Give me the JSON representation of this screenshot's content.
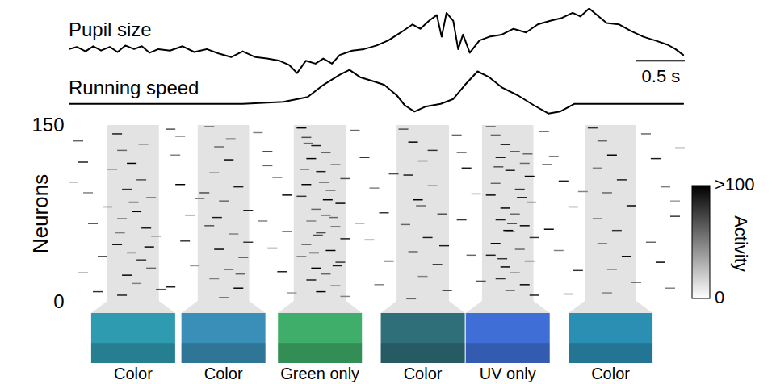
{
  "chart_data": {
    "type": "raster",
    "traces": [
      {
        "name": "Pupil size",
        "color": "#000000",
        "ylim": [
          0,
          1
        ],
        "x": [
          0,
          0.08,
          0.17,
          0.25,
          0.33,
          0.42,
          0.5,
          0.58,
          0.67,
          0.75,
          0.83,
          0.92,
          1.04,
          1.17,
          1.29,
          1.42,
          1.54,
          1.67,
          1.79,
          1.92,
          2.04,
          2.17,
          2.27,
          2.35,
          2.44,
          2.54,
          2.62,
          2.71,
          2.79,
          2.92,
          3.04,
          3.17,
          3.29,
          3.42,
          3.54,
          3.62,
          3.71,
          3.79,
          3.84,
          3.89,
          3.96,
          4.01,
          4.06,
          4.13,
          4.23,
          4.33,
          4.46,
          4.58,
          4.71,
          4.83,
          4.96,
          5.08,
          5.19,
          5.27,
          5.36,
          5.44,
          5.54,
          5.67,
          5.79,
          5.92,
          6.04,
          6.17,
          6.25,
          6.33
        ],
        "values": [
          0.44,
          0.47,
          0.41,
          0.48,
          0.42,
          0.47,
          0.4,
          0.49,
          0.44,
          0.48,
          0.39,
          0.44,
          0.42,
          0.48,
          0.4,
          0.44,
          0.38,
          0.33,
          0.41,
          0.33,
          0.31,
          0.28,
          0.22,
          0.11,
          0.28,
          0.24,
          0.31,
          0.24,
          0.36,
          0.42,
          0.44,
          0.49,
          0.56,
          0.67,
          0.78,
          0.72,
          0.83,
          0.91,
          0.61,
          0.94,
          0.83,
          0.44,
          0.64,
          0.39,
          0.56,
          0.61,
          0.64,
          0.72,
          0.67,
          0.78,
          0.83,
          0.87,
          0.94,
          0.89,
          1.0,
          0.91,
          0.8,
          0.78,
          0.69,
          0.61,
          0.56,
          0.5,
          0.44,
          0.36
        ]
      },
      {
        "name": "Running speed",
        "color": "#000000",
        "ylim": [
          0,
          1
        ],
        "x": [
          0,
          1.79,
          2.21,
          2.46,
          2.62,
          2.79,
          2.89,
          3.0,
          3.13,
          3.25,
          3.38,
          3.46,
          3.56,
          3.67,
          3.83,
          3.96,
          4.08,
          4.21,
          4.33,
          4.46,
          4.63,
          4.79,
          4.94,
          5.06,
          5.21,
          6.33
        ],
        "values": [
          0.28,
          0.28,
          0.32,
          0.42,
          0.67,
          0.88,
          0.98,
          0.83,
          0.75,
          0.67,
          0.45,
          0.25,
          0.12,
          0.22,
          0.28,
          0.38,
          0.67,
          0.95,
          0.83,
          0.62,
          0.45,
          0.25,
          0.08,
          0.12,
          0.28,
          0.28
        ]
      }
    ],
    "xlim": [
      0,
      6.35
    ],
    "scale_bar": {
      "value": 0.5,
      "label": "0.5 s"
    },
    "ylabel": "Neurons",
    "ylim": [
      0,
      150
    ],
    "yticks": [
      0,
      150
    ],
    "tick_labels": "y",
    "bin_width": 0.1,
    "events": [
      [
        0.45,
        142,
        90
      ],
      [
        0.5,
        128,
        60
      ],
      [
        0.6,
        117,
        100
      ],
      [
        0.7,
        103,
        70
      ],
      [
        0.55,
        95,
        80
      ],
      [
        0.8,
        88,
        50
      ],
      [
        0.65,
        76,
        100
      ],
      [
        0.5,
        70,
        60
      ],
      [
        0.75,
        62,
        90
      ],
      [
        0.85,
        55,
        40
      ],
      [
        0.45,
        48,
        100
      ],
      [
        0.6,
        41,
        70
      ],
      [
        0.7,
        35,
        80
      ],
      [
        0.8,
        28,
        60
      ],
      [
        0.55,
        22,
        100
      ],
      [
        0.65,
        15,
        50
      ],
      [
        0.9,
        10,
        70
      ],
      [
        0.5,
        5,
        90
      ],
      [
        0.72,
        133,
        40
      ],
      [
        0.62,
        84,
        90
      ],
      [
        0.48,
        58,
        50
      ],
      [
        0.78,
        46,
        100
      ],
      [
        0.4,
        112,
        60
      ],
      [
        0.05,
        136,
        60
      ],
      [
        0.1,
        118,
        90
      ],
      [
        0.15,
        92,
        50
      ],
      [
        0.2,
        66,
        100
      ],
      [
        0.3,
        38,
        70
      ],
      [
        0.1,
        24,
        50
      ],
      [
        0.25,
        8,
        80
      ],
      [
        0.0,
        101,
        40
      ],
      [
        0.35,
        80,
        60
      ],
      [
        1.0,
        146,
        70
      ],
      [
        1.05,
        124,
        50
      ],
      [
        1.1,
        99,
        100
      ],
      [
        1.2,
        73,
        60
      ],
      [
        1.15,
        51,
        80
      ],
      [
        1.25,
        30,
        40
      ],
      [
        1.0,
        12,
        90
      ],
      [
        1.1,
        140,
        60
      ],
      [
        1.3,
        87,
        50
      ],
      [
        1.4,
        148,
        80
      ],
      [
        1.5,
        131,
        60
      ],
      [
        1.6,
        120,
        100
      ],
      [
        1.45,
        109,
        50
      ],
      [
        1.7,
        97,
        90
      ],
      [
        1.55,
        85,
        60
      ],
      [
        1.8,
        77,
        100
      ],
      [
        1.4,
        64,
        70
      ],
      [
        1.65,
        57,
        50
      ],
      [
        1.5,
        44,
        100
      ],
      [
        1.75,
        37,
        60
      ],
      [
        1.6,
        27,
        80
      ],
      [
        1.45,
        19,
        50
      ],
      [
        1.7,
        11,
        100
      ],
      [
        1.55,
        3,
        60
      ],
      [
        1.35,
        92,
        70
      ],
      [
        1.8,
        50,
        80
      ],
      [
        1.62,
        138,
        40
      ],
      [
        1.48,
        71,
        90
      ],
      [
        1.72,
        23,
        60
      ],
      [
        1.9,
        143,
        50
      ],
      [
        2.0,
        127,
        80
      ],
      [
        2.1,
        105,
        60
      ],
      [
        2.2,
        90,
        100
      ],
      [
        1.95,
        68,
        50
      ],
      [
        2.05,
        45,
        70
      ],
      [
        2.15,
        25,
        90
      ],
      [
        2.25,
        7,
        40
      ],
      [
        2.0,
        115,
        60
      ],
      [
        2.2,
        59,
        80
      ],
      [
        2.35,
        147,
        100
      ],
      [
        2.4,
        139,
        70
      ],
      [
        2.5,
        132,
        90
      ],
      [
        2.6,
        126,
        60
      ],
      [
        2.45,
        121,
        100
      ],
      [
        2.7,
        116,
        50
      ],
      [
        2.55,
        110,
        90
      ],
      [
        2.8,
        104,
        70
      ],
      [
        2.4,
        99,
        100
      ],
      [
        2.65,
        94,
        60
      ],
      [
        2.35,
        89,
        80
      ],
      [
        2.75,
        83,
        100
      ],
      [
        2.5,
        78,
        60
      ],
      [
        2.6,
        73,
        90
      ],
      [
        2.45,
        68,
        50
      ],
      [
        2.7,
        63,
        100
      ],
      [
        2.55,
        58,
        70
      ],
      [
        2.8,
        53,
        90
      ],
      [
        2.4,
        48,
        60
      ],
      [
        2.65,
        43,
        100
      ],
      [
        2.35,
        38,
        50
      ],
      [
        2.75,
        33,
        80
      ],
      [
        2.5,
        28,
        100
      ],
      [
        2.6,
        23,
        60
      ],
      [
        2.45,
        18,
        90
      ],
      [
        2.7,
        13,
        70
      ],
      [
        2.55,
        8,
        100
      ],
      [
        2.8,
        4,
        50
      ],
      [
        2.38,
        112,
        80
      ],
      [
        2.62,
        86,
        100
      ],
      [
        2.52,
        56,
        70
      ],
      [
        2.72,
        30,
        90
      ],
      [
        2.42,
        134,
        60
      ],
      [
        2.58,
        101,
        80
      ],
      [
        2.68,
        71,
        60
      ],
      [
        2.48,
        41,
        100
      ],
      [
        2.9,
        145,
        60
      ],
      [
        3.0,
        122,
        90
      ],
      [
        3.1,
        96,
        50
      ],
      [
        3.2,
        75,
        80
      ],
      [
        3.05,
        52,
        60
      ],
      [
        3.25,
        34,
        100
      ],
      [
        3.15,
        14,
        50
      ],
      [
        3.3,
        108,
        70
      ],
      [
        2.95,
        66,
        40
      ],
      [
        3.4,
        146,
        70
      ],
      [
        3.5,
        135,
        100
      ],
      [
        3.6,
        119,
        60
      ],
      [
        3.45,
        107,
        90
      ],
      [
        3.7,
        98,
        50
      ],
      [
        3.55,
        86,
        100
      ],
      [
        3.8,
        74,
        70
      ],
      [
        3.42,
        65,
        60
      ],
      [
        3.65,
        54,
        90
      ],
      [
        3.5,
        42,
        60
      ],
      [
        3.75,
        31,
        100
      ],
      [
        3.6,
        21,
        50
      ],
      [
        3.85,
        9,
        80
      ],
      [
        3.48,
        2,
        60
      ],
      [
        3.7,
        128,
        80
      ],
      [
        3.58,
        81,
        60
      ],
      [
        3.82,
        47,
        90
      ],
      [
        3.95,
        141,
        60
      ],
      [
        4.05,
        113,
        90
      ],
      [
        4.15,
        91,
        50
      ],
      [
        4.0,
        69,
        80
      ],
      [
        4.1,
        39,
        60
      ],
      [
        4.2,
        17,
        70
      ],
      [
        4.0,
        126,
        50
      ],
      [
        4.3,
        148,
        90
      ],
      [
        4.35,
        141,
        60
      ],
      [
        4.45,
        133,
        100
      ],
      [
        4.55,
        127,
        70
      ],
      [
        4.4,
        122,
        100
      ],
      [
        4.65,
        117,
        60
      ],
      [
        4.5,
        111,
        90
      ],
      [
        4.7,
        106,
        100
      ],
      [
        4.35,
        100,
        60
      ],
      [
        4.6,
        95,
        80
      ],
      [
        4.3,
        90,
        100
      ],
      [
        4.72,
        84,
        70
      ],
      [
        4.45,
        79,
        100
      ],
      [
        4.55,
        74,
        60
      ],
      [
        4.4,
        69,
        90
      ],
      [
        4.65,
        64,
        100
      ],
      [
        4.5,
        59,
        60
      ],
      [
        4.75,
        54,
        80
      ],
      [
        4.35,
        49,
        100
      ],
      [
        4.6,
        44,
        60
      ],
      [
        4.3,
        39,
        90
      ],
      [
        4.7,
        34,
        70
      ],
      [
        4.45,
        29,
        100
      ],
      [
        4.55,
        24,
        60
      ],
      [
        4.4,
        19,
        80
      ],
      [
        4.65,
        14,
        100
      ],
      [
        4.5,
        9,
        60
      ],
      [
        4.75,
        5,
        90
      ],
      [
        4.48,
        60,
        100
      ],
      [
        4.52,
        66,
        100
      ],
      [
        4.38,
        114,
        70
      ],
      [
        4.62,
        88,
        90
      ],
      [
        4.42,
        36,
        80
      ],
      [
        4.68,
        125,
        60
      ],
      [
        4.85,
        144,
        70
      ],
      [
        4.95,
        123,
        50
      ],
      [
        5.05,
        102,
        90
      ],
      [
        5.15,
        80,
        60
      ],
      [
        4.9,
        61,
        100
      ],
      [
        5.0,
        43,
        50
      ],
      [
        5.2,
        26,
        80
      ],
      [
        5.1,
        6,
        60
      ],
      [
        5.25,
        93,
        50
      ],
      [
        4.88,
        116,
        60
      ],
      [
        5.35,
        147,
        80
      ],
      [
        5.45,
        136,
        60
      ],
      [
        5.55,
        124,
        100
      ],
      [
        5.4,
        113,
        50
      ],
      [
        5.65,
        103,
        90
      ],
      [
        5.5,
        92,
        60
      ],
      [
        5.75,
        81,
        100
      ],
      [
        5.4,
        70,
        60
      ],
      [
        5.6,
        60,
        80
      ],
      [
        5.45,
        49,
        50
      ],
      [
        5.7,
        38,
        100
      ],
      [
        5.55,
        27,
        60
      ],
      [
        5.8,
        16,
        80
      ],
      [
        5.5,
        7,
        50
      ],
      [
        5.9,
        142,
        60
      ],
      [
        6.0,
        121,
        90
      ],
      [
        6.1,
        97,
        50
      ],
      [
        6.2,
        72,
        80
      ],
      [
        5.95,
        50,
        60
      ],
      [
        6.05,
        33,
        100
      ],
      [
        6.15,
        11,
        50
      ],
      [
        6.25,
        130,
        70
      ],
      [
        6.2,
        85,
        40
      ]
    ],
    "stimuli": [
      {
        "start": 0.4,
        "end": 0.93,
        "label": "Color",
        "color": "#2f9bb0"
      },
      {
        "start": 1.33,
        "end": 1.86,
        "label": "Color",
        "color": "#3a8fb8"
      },
      {
        "start": 2.32,
        "end": 2.86,
        "label": "Green only",
        "color": "#3fae6a"
      },
      {
        "start": 3.38,
        "end": 3.92,
        "label": "Color",
        "color": "#2f6f7a"
      },
      {
        "start": 4.26,
        "end": 4.79,
        "label": "UV only",
        "color": "#3f6fd6"
      },
      {
        "start": 5.32,
        "end": 5.85,
        "label": "Color",
        "color": "#2b8fb4"
      }
    ],
    "colorbar": {
      "label": "Activity",
      "range": [
        0,
        100
      ],
      "ticks": [
        0,
        {
          "value": 100,
          "label": ">100"
        }
      ]
    }
  }
}
